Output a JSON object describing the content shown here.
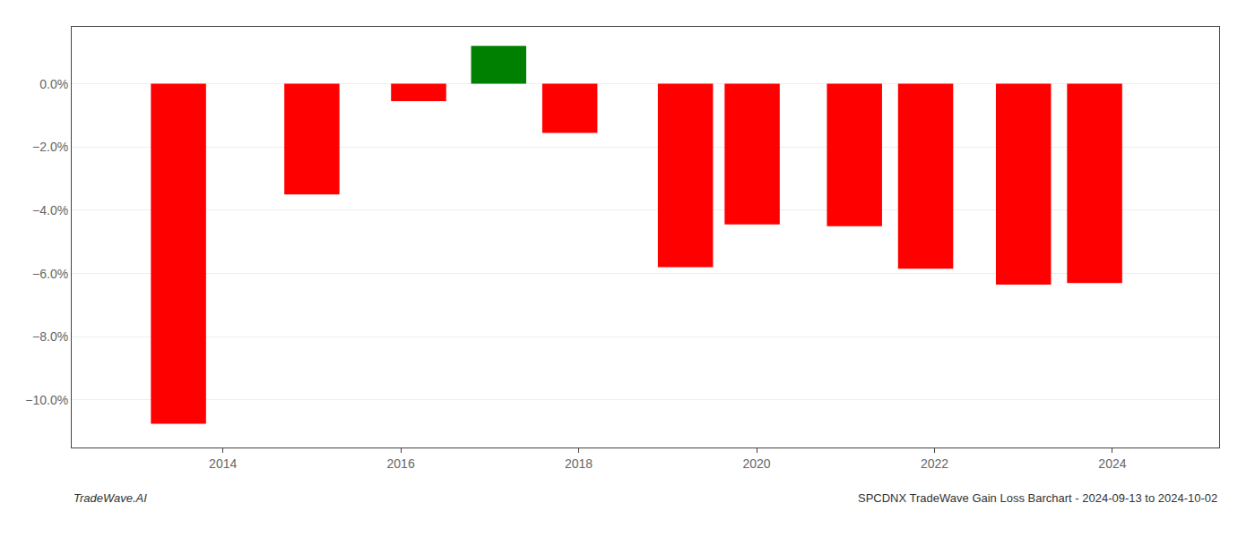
{
  "chart_data": {
    "type": "bar",
    "x": [
      2013.5,
      2015.0,
      2016.2,
      2017.1,
      2017.9,
      2019.2,
      2019.95,
      2021.1,
      2021.9,
      2023.0,
      2023.8
    ],
    "values": [
      -10.75,
      -3.5,
      -0.55,
      1.2,
      -1.55,
      -5.8,
      -4.45,
      -4.5,
      -5.85,
      -6.35,
      -6.3
    ],
    "colors": [
      "#ff0000",
      "#ff0000",
      "#ff0000",
      "#008000",
      "#ff0000",
      "#ff0000",
      "#ff0000",
      "#ff0000",
      "#ff0000",
      "#ff0000",
      "#ff0000"
    ],
    "xlim": [
      2012.3,
      2025.2
    ],
    "ylim": [
      -11.5,
      1.8
    ],
    "xticks": [
      2014,
      2016,
      2018,
      2020,
      2022,
      2024
    ],
    "yticks": [
      {
        "value": 0.0,
        "label": "0.0%"
      },
      {
        "value": -2.0,
        "label": "−2.0%"
      },
      {
        "value": -4.0,
        "label": "−4.0%"
      },
      {
        "value": -6.0,
        "label": "−6.0%"
      },
      {
        "value": -8.0,
        "label": "−8.0%"
      },
      {
        "value": -10.0,
        "label": "−10.0%"
      }
    ],
    "grid": "y",
    "annotations": [
      "TradeWave.AI",
      "SPCDNX TradeWave Gain Loss Barchart - 2024-09-13 to 2024-10-02"
    ]
  }
}
